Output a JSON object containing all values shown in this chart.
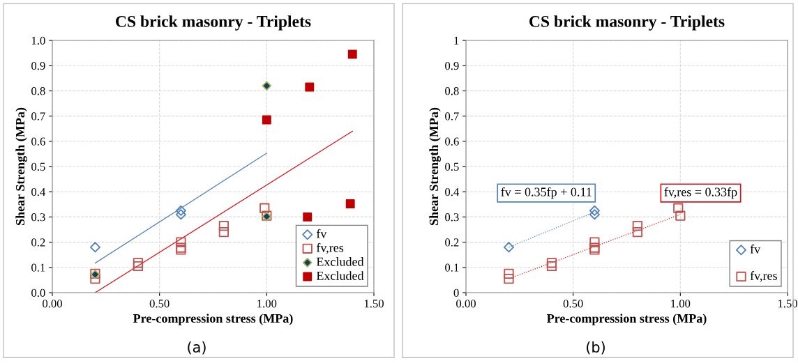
{
  "chart_data": [
    {
      "type": "scatter",
      "title": "CS brick masonry - Triplets",
      "xlabel": "Pre-compression stress (MPa)",
      "ylabel": "Shear Strength (MPa)",
      "xlim": [
        0,
        1.5
      ],
      "xticks": [
        {
          "value": 0,
          "label": "0.00"
        },
        {
          "value": 0.5,
          "label": "0.50"
        },
        {
          "value": 1.0,
          "label": "1.00"
        },
        {
          "value": 1.5,
          "label": "1.50"
        }
      ],
      "ylim": [
        0,
        1.0
      ],
      "yticks": [
        {
          "value": 0,
          "label": "0.0"
        },
        {
          "value": 0.1,
          "label": "0.1"
        },
        {
          "value": 0.2,
          "label": "0.2"
        },
        {
          "value": 0.3,
          "label": "0.3"
        },
        {
          "value": 0.4,
          "label": "0.4"
        },
        {
          "value": 0.5,
          "label": "0.5"
        },
        {
          "value": 0.6,
          "label": "0.6"
        },
        {
          "value": 0.7,
          "label": "0.7"
        },
        {
          "value": 0.8,
          "label": "0.8"
        },
        {
          "value": 0.9,
          "label": "0.9"
        },
        {
          "value": 1.0,
          "label": "1.0"
        }
      ],
      "grid": true,
      "legend": "bottom right",
      "annotations": [
        "(a)"
      ],
      "series": [
        {
          "name": "fv",
          "color": "#4f81bd",
          "marker": "diamond",
          "x": [
            0.2,
            0.6,
            0.6
          ],
          "values": [
            0.18,
            0.325,
            0.31
          ]
        },
        {
          "name": "fv,res",
          "color": "#c0504d",
          "marker": "square",
          "x": [
            0.2,
            0.2,
            0.4,
            0.4,
            0.6,
            0.6,
            0.6,
            0.8,
            0.8,
            0.99,
            1.0
          ],
          "values": [
            0.075,
            0.055,
            0.118,
            0.105,
            0.2,
            0.178,
            0.17,
            0.265,
            0.24,
            0.335,
            0.305
          ]
        },
        {
          "name": "Excluded",
          "color": "#1f3864",
          "marker": "diamond",
          "x": [
            0.2,
            1.0,
            1.0
          ],
          "values": [
            0.072,
            0.82,
            0.302
          ]
        },
        {
          "name": "Excluded",
          "color": "#c00000",
          "marker": "square",
          "x": [
            1.0,
            1.2,
            1.4,
            1.19,
            1.39
          ],
          "values": [
            0.685,
            0.815,
            0.945,
            0.3,
            0.352
          ]
        },
        {
          "type": "line",
          "color": "#4f81bd",
          "line_style": "solid",
          "marker": "none",
          "x": [
            0.2,
            1.0
          ],
          "values": [
            0.117,
            0.553
          ]
        },
        {
          "type": "line",
          "color": "#e0101a",
          "line_style": "solid",
          "marker": "none",
          "x": [
            0.2,
            1.4
          ],
          "values": [
            0.0,
            0.64
          ]
        }
      ]
    },
    {
      "type": "scatter",
      "title": "CS brick masonry - Triplets",
      "xlabel": "Pre-compression stress (MPa)",
      "ylabel": "Shear Strength (MPa)",
      "xlim": [
        0,
        1.5
      ],
      "xticks": [
        {
          "value": 0,
          "label": "0.00"
        },
        {
          "value": 0.5,
          "label": "0.50"
        },
        {
          "value": 1.0,
          "label": "1.00"
        },
        {
          "value": 1.5,
          "label": "1.50"
        }
      ],
      "ylim": [
        0,
        1
      ],
      "yticks": [
        0,
        0.1,
        0.2,
        0.3,
        0.4,
        0.5,
        0.6,
        0.7,
        0.8,
        0.9,
        1
      ],
      "grid": true,
      "legend": "bottom right",
      "annotations": [
        "fv = 0.35fp + 0.11",
        "fv,res = 0.33fp",
        "(b)"
      ],
      "series": [
        {
          "name": "fv",
          "color": "#4f81bd",
          "marker": "diamond",
          "x": [
            0.2,
            0.6,
            0.6
          ],
          "values": [
            0.18,
            0.325,
            0.31
          ]
        },
        {
          "name": "fv,res",
          "color": "#c0504d",
          "marker": "square",
          "x": [
            0.2,
            0.2,
            0.4,
            0.4,
            0.6,
            0.6,
            0.6,
            0.8,
            0.8,
            0.99,
            1.0
          ],
          "values": [
            0.075,
            0.055,
            0.118,
            0.105,
            0.2,
            0.178,
            0.17,
            0.265,
            0.24,
            0.335,
            0.305
          ]
        },
        {
          "type": "line",
          "color": "#4f81bd",
          "line_style": "dotted",
          "marker": "none",
          "x": [
            0.2,
            0.6
          ],
          "values": [
            0.18,
            0.32
          ]
        },
        {
          "type": "line",
          "color": "#e0101a",
          "line_style": "dotted",
          "marker": "none",
          "x": [
            0.2,
            1.0
          ],
          "values": [
            0.055,
            0.31
          ]
        }
      ]
    }
  ]
}
